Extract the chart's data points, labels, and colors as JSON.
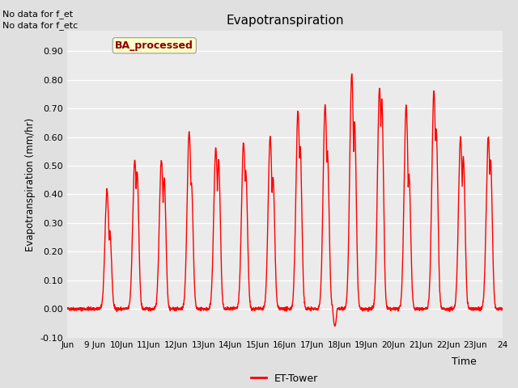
{
  "title": "Evapotranspiration",
  "ylabel": "Evapotranspiration (mm/hr)",
  "xlabel": "Time",
  "ylim": [
    -0.1,
    0.97
  ],
  "ytick_vals": [
    -0.1,
    0.0,
    0.1,
    0.2,
    0.3,
    0.4,
    0.5,
    0.6,
    0.7,
    0.8,
    0.9
  ],
  "ytick_labels": [
    "-0.10",
    "0.00",
    "0.10",
    "0.20",
    "0.30",
    "0.40",
    "0.50",
    "0.60",
    "0.70",
    "0.80",
    "0.90"
  ],
  "line_color": "red",
  "line_width": 1.0,
  "fig_bg_color": "#e0e0e0",
  "plot_bg_color": "#ebebeb",
  "annotation_text_line1": "No data for f_et",
  "annotation_text_line2": "No data for f_etc",
  "box_label": "BA_processed",
  "legend_label": "ET-Tower",
  "x_tick_labels": [
    "Jun",
    "9 Jun",
    "10Jun",
    "11Jun",
    "12Jun",
    "13Jun",
    "14Jun",
    "15Jun",
    "16Jun",
    "17Jun",
    "18Jun",
    "19Jun",
    "20Jun",
    "21Jun",
    "22Jun",
    "23Jun",
    "24"
  ],
  "day_peaks1": [
    0.0,
    0.41,
    0.52,
    0.52,
    0.62,
    0.56,
    0.58,
    0.6,
    0.69,
    0.71,
    0.82,
    0.77,
    0.71,
    0.76,
    0.6,
    0.6
  ],
  "day_peaks2": [
    0.0,
    0.27,
    0.48,
    0.46,
    0.44,
    0.52,
    0.48,
    0.46,
    0.56,
    0.55,
    0.65,
    0.73,
    0.47,
    0.63,
    0.53,
    0.52
  ],
  "peak1_center": [
    0,
    11.0,
    11.5,
    11.0,
    11.5,
    11.0,
    11.5,
    11.0,
    11.5,
    11.5,
    11.0,
    11.5,
    11.0,
    11.5,
    11.0,
    11.5
  ],
  "peak2_center": [
    0,
    13.5,
    13.5,
    13.5,
    13.5,
    13.5,
    13.5,
    13.5,
    13.5,
    13.5,
    13.5,
    13.5,
    13.5,
    13.5,
    13.5,
    13.5
  ]
}
